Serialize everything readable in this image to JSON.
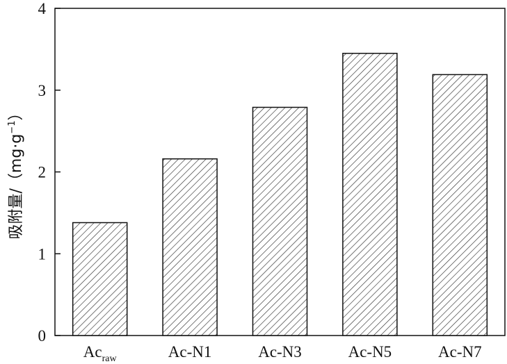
{
  "chart_data": {
    "type": "bar",
    "categories": [
      {
        "main": "Ac",
        "sub": "raw"
      },
      {
        "main": "Ac-N1",
        "sub": ""
      },
      {
        "main": "Ac-N3",
        "sub": ""
      },
      {
        "main": "Ac-N5",
        "sub": ""
      },
      {
        "main": "Ac-N7",
        "sub": ""
      }
    ],
    "values": [
      1.38,
      2.16,
      2.79,
      3.45,
      3.19
    ],
    "ylabel": {
      "text": "吸附量/（mg·g",
      "sup": "−1",
      "close": "）"
    },
    "ylim": [
      0,
      4
    ],
    "yticks": [
      "0",
      "1",
      "2",
      "3",
      "4"
    ],
    "bar_fill": "hatched",
    "grid": false,
    "legend": "none"
  }
}
